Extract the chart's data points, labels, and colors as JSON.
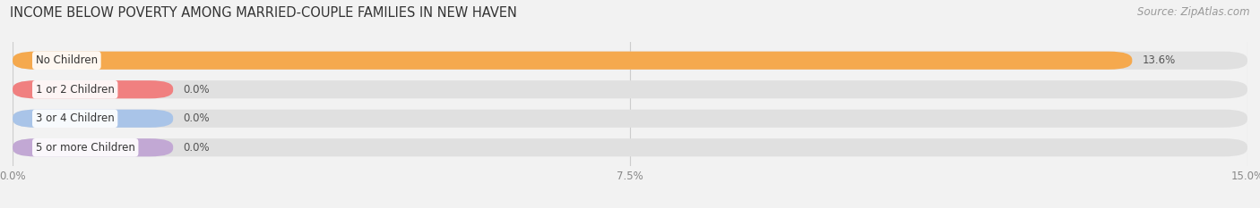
{
  "title": "INCOME BELOW POVERTY AMONG MARRIED-COUPLE FAMILIES IN NEW HAVEN",
  "source": "Source: ZipAtlas.com",
  "categories": [
    "No Children",
    "1 or 2 Children",
    "3 or 4 Children",
    "5 or more Children"
  ],
  "values": [
    13.6,
    0.0,
    0.0,
    0.0
  ],
  "display_values": [
    "13.6%",
    "0.0%",
    "0.0%",
    "0.0%"
  ],
  "bar_colors": [
    "#F5A94E",
    "#F08080",
    "#A9C4E8",
    "#C2A8D4"
  ],
  "xlim": [
    0,
    15.0
  ],
  "xticks": [
    0.0,
    7.5,
    15.0
  ],
  "xticklabels": [
    "0.0%",
    "7.5%",
    "15.0%"
  ],
  "background_color": "#f2f2f2",
  "bar_background_color": "#e0e0e0",
  "title_fontsize": 10.5,
  "source_fontsize": 8.5,
  "bar_height": 0.62,
  "bar_label_fontsize": 8.5,
  "category_fontsize": 8.5,
  "zero_bar_extent": 1.95
}
